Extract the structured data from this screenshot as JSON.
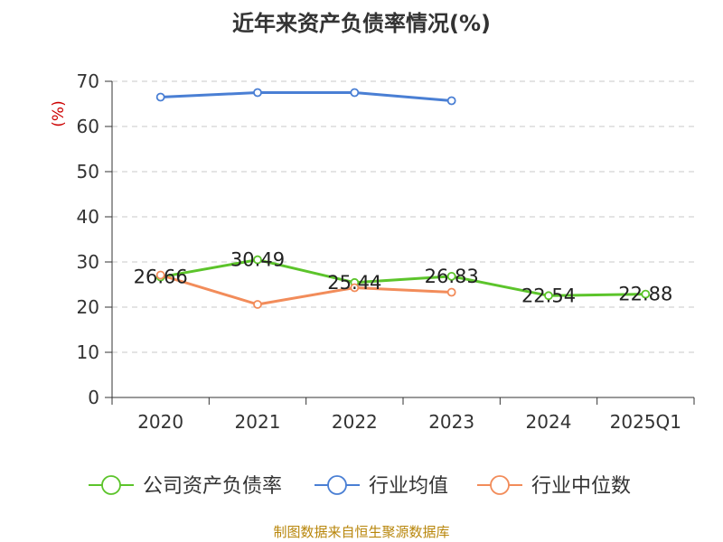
{
  "chart_data": {
    "type": "line",
    "title": "近年来资产负债率情况(%)",
    "ylabel": "(%)",
    "xlabel": "",
    "categories": [
      "2020",
      "2021",
      "2022",
      "2023",
      "2024",
      "2025Q1"
    ],
    "ylim": [
      0,
      70
    ],
    "yticks": [
      0,
      10,
      20,
      30,
      40,
      50,
      60,
      70
    ],
    "grid": true,
    "legend_position": "bottom",
    "series": [
      {
        "name": "公司资产负债率",
        "color": "#5cc42b",
        "values": [
          26.66,
          30.49,
          25.44,
          26.83,
          22.54,
          22.88
        ],
        "show_labels": true
      },
      {
        "name": "行业均值",
        "color": "#4a7fd4",
        "values": [
          66.5,
          67.5,
          67.5,
          65.7,
          null,
          null
        ],
        "show_labels": false
      },
      {
        "name": "行业中位数",
        "color": "#f28c5a",
        "values": [
          27.1,
          20.6,
          24.3,
          23.3,
          null,
          null
        ],
        "show_labels": false
      }
    ]
  },
  "source": "制图数据来自恒生聚源数据库"
}
